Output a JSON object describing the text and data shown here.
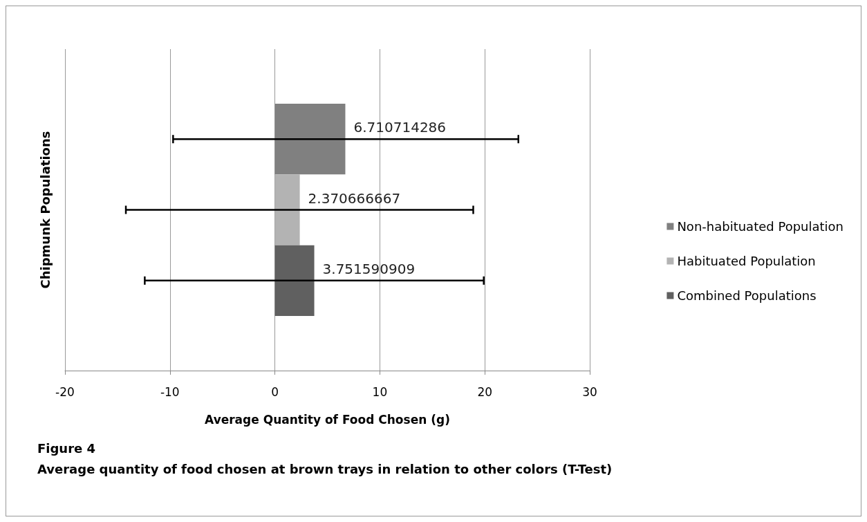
{
  "chart_data": {
    "type": "bar",
    "orientation": "horizontal",
    "title": "Figure 4",
    "subtitle": "Average quantity of food chosen at brown trays in relation to other colors (T-Test)",
    "xlabel": "Average Quantity of Food Chosen (g)",
    "ylabel": "Chipmunk Populations",
    "categories": [
      null
    ],
    "series": [
      {
        "name": "Non-habituated Population",
        "color": "#808080",
        "values": [
          6.710714286
        ],
        "errors": [
          [
            -9.7,
            23.2
          ]
        ]
      },
      {
        "name": "Habituated Population",
        "color": "#b3b3b3",
        "values": [
          2.370666667
        ],
        "errors": [
          [
            -14.2,
            18.9
          ]
        ]
      },
      {
        "name": "Combined Populations",
        "color": "#606060",
        "values": [
          3.751590909
        ],
        "errors": [
          [
            -12.4,
            19.9
          ]
        ]
      }
    ],
    "xlim": [
      -20,
      30
    ],
    "xticks": [
      -20,
      -10,
      0,
      10,
      20,
      30
    ],
    "grid": "x",
    "legend": "right",
    "data_labels": true
  }
}
